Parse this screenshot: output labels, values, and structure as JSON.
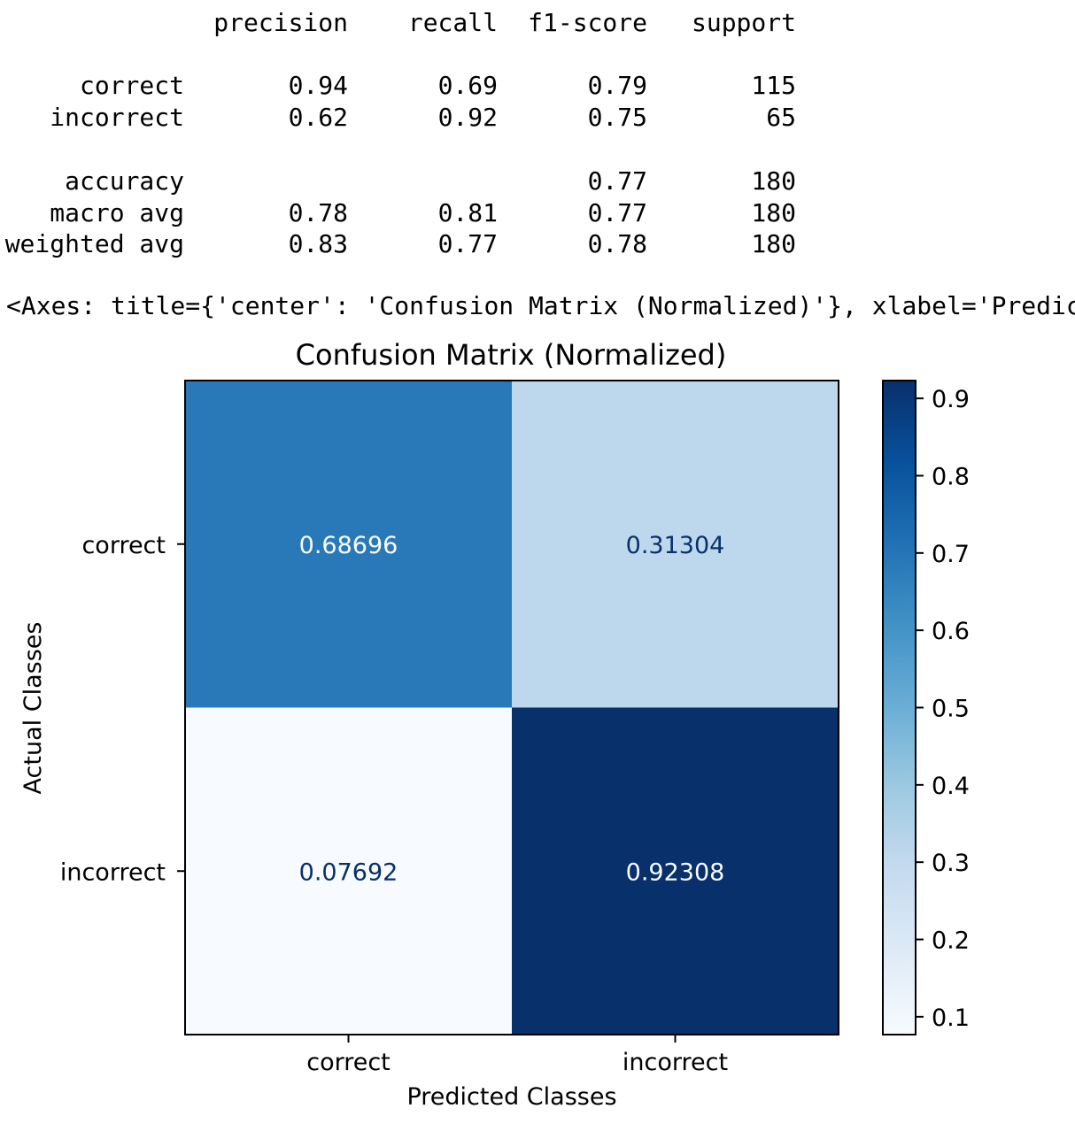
{
  "report": {
    "header": {
      "precision": "precision",
      "recall": "recall",
      "f1": "f1-score",
      "support": "support"
    },
    "rows": [
      {
        "label": "correct",
        "precision": "0.94",
        "recall": "0.69",
        "f1": "0.79",
        "support": "115"
      },
      {
        "label": "incorrect",
        "precision": "0.62",
        "recall": "0.92",
        "f1": "0.75",
        "support": "65"
      },
      {
        "label": "accuracy",
        "precision": "",
        "recall": "",
        "f1": "0.77",
        "support": "180"
      },
      {
        "label": "macro avg",
        "precision": "0.78",
        "recall": "0.81",
        "f1": "0.77",
        "support": "180"
      },
      {
        "label": "weighted avg",
        "precision": "0.83",
        "recall": "0.77",
        "f1": "0.78",
        "support": "180"
      }
    ]
  },
  "axes_repr": "<Axes: title={'center': 'Confusion Matrix (Normalized)'}, xlabel='Predic",
  "chart_data": {
    "type": "heatmap",
    "title": "Confusion Matrix (Normalized)",
    "xlabel": "Predicted Classes",
    "ylabel": "Actual Classes",
    "x_categories": [
      "correct",
      "incorrect"
    ],
    "y_categories": [
      "correct",
      "incorrect"
    ],
    "values": [
      [
        0.68696,
        0.31304
      ],
      [
        0.07692,
        0.92308
      ]
    ],
    "value_labels": [
      [
        "0.68696",
        "0.31304"
      ],
      [
        "0.07692",
        "0.92308"
      ]
    ],
    "colormap": "Blues",
    "colorbar": {
      "range": [
        0.07692,
        0.92308
      ],
      "ticks": [
        0.1,
        0.2,
        0.3,
        0.4,
        0.5,
        0.6,
        0.7,
        0.8,
        0.9
      ],
      "tick_labels": [
        "0.1",
        "0.2",
        "0.3",
        "0.4",
        "0.5",
        "0.6",
        "0.7",
        "0.8",
        "0.9"
      ]
    },
    "colors": {
      "low": "#f7fbff",
      "high": "#08306b",
      "text_on_light": "#08306b",
      "text_on_dark": "#f7fbff"
    }
  }
}
